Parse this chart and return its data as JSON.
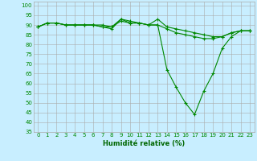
{
  "hours": [
    0,
    1,
    2,
    3,
    4,
    5,
    6,
    7,
    8,
    9,
    10,
    11,
    12,
    13,
    14,
    15,
    16,
    17,
    18,
    19,
    20,
    21,
    22,
    23
  ],
  "line1": [
    89,
    91,
    91,
    90,
    90,
    90,
    90,
    90,
    89,
    93,
    92,
    91,
    90,
    93,
    89,
    88,
    87,
    86,
    85,
    84,
    84,
    86,
    87,
    87
  ],
  "line2": [
    89,
    91,
    91,
    90,
    90,
    90,
    90,
    89,
    89,
    92,
    91,
    91,
    90,
    90,
    88,
    86,
    85,
    84,
    83,
    83,
    84,
    86,
    87,
    87
  ],
  "line3": [
    89,
    91,
    91,
    90,
    90,
    90,
    90,
    89,
    88,
    93,
    91,
    91,
    90,
    90,
    67,
    58,
    50,
    44,
    56,
    65,
    78,
    84,
    87,
    87
  ],
  "line_color": "#008800",
  "bg_color": "#c8eeff",
  "grid_color": "#aaaaaa",
  "xlabel": "Humidité relative (%)",
  "ylim": [
    35,
    102
  ],
  "yticks": [
    35,
    40,
    45,
    50,
    55,
    60,
    65,
    70,
    75,
    80,
    85,
    90,
    95,
    100
  ],
  "marker": "+",
  "marker_size": 3,
  "line_width": 0.8,
  "xlabel_color": "#006600",
  "xlabel_fontsize": 6.0,
  "tick_fontsize": 5.0
}
